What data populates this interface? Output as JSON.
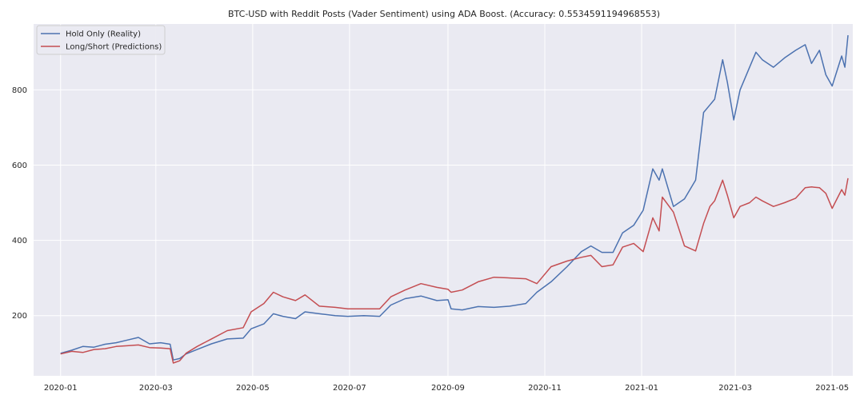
{
  "chart_data": {
    "type": "line",
    "title": "BTC-USD with Reddit Posts (Vader Sentiment) using ADA Boost. (Accuracy: 0.5534591194968553)",
    "xlabel": "",
    "ylabel": "",
    "x_ticks": [
      "2020-01",
      "2020-03",
      "2020-05",
      "2020-07",
      "2020-09",
      "2020-11",
      "2021-01",
      "2021-03",
      "2021-05"
    ],
    "y_ticks": [
      200,
      400,
      600,
      800
    ],
    "xlim": [
      "2019-12-15",
      "2021-05-14"
    ],
    "ylim": [
      40,
      975
    ],
    "grid": true,
    "legend_position": "top-left",
    "series": [
      {
        "name": "Hold Only (Reality)",
        "color": "#4c72b0",
        "points": [
          [
            "2020-01-01",
            100
          ],
          [
            "2020-01-08",
            108
          ],
          [
            "2020-01-15",
            118
          ],
          [
            "2020-01-22",
            116
          ],
          [
            "2020-01-29",
            124
          ],
          [
            "2020-02-05",
            128
          ],
          [
            "2020-02-12",
            135
          ],
          [
            "2020-02-19",
            142
          ],
          [
            "2020-02-26",
            125
          ],
          [
            "2020-03-04",
            128
          ],
          [
            "2020-03-10",
            124
          ],
          [
            "2020-03-12",
            82
          ],
          [
            "2020-03-16",
            86
          ],
          [
            "2020-03-20",
            98
          ],
          [
            "2020-03-27",
            110
          ],
          [
            "2020-04-05",
            125
          ],
          [
            "2020-04-15",
            138
          ],
          [
            "2020-04-25",
            140
          ],
          [
            "2020-04-30",
            165
          ],
          [
            "2020-05-08",
            178
          ],
          [
            "2020-05-14",
            205
          ],
          [
            "2020-05-20",
            198
          ],
          [
            "2020-05-28",
            192
          ],
          [
            "2020-06-03",
            210
          ],
          [
            "2020-06-12",
            205
          ],
          [
            "2020-06-22",
            200
          ],
          [
            "2020-06-30",
            198
          ],
          [
            "2020-07-10",
            200
          ],
          [
            "2020-07-20",
            198
          ],
          [
            "2020-07-27",
            228
          ],
          [
            "2020-08-05",
            245
          ],
          [
            "2020-08-15",
            252
          ],
          [
            "2020-08-25",
            240
          ],
          [
            "2020-09-01",
            242
          ],
          [
            "2020-09-03",
            218
          ],
          [
            "2020-09-10",
            215
          ],
          [
            "2020-09-20",
            224
          ],
          [
            "2020-09-30",
            222
          ],
          [
            "2020-10-10",
            225
          ],
          [
            "2020-10-20",
            232
          ],
          [
            "2020-10-27",
            262
          ],
          [
            "2020-11-05",
            290
          ],
          [
            "2020-11-15",
            330
          ],
          [
            "2020-11-24",
            370
          ],
          [
            "2020-11-30",
            385
          ],
          [
            "2020-12-07",
            368
          ],
          [
            "2020-12-14",
            368
          ],
          [
            "2020-12-20",
            420
          ],
          [
            "2020-12-27",
            440
          ],
          [
            "2021-01-02",
            480
          ],
          [
            "2021-01-08",
            590
          ],
          [
            "2021-01-12",
            560
          ],
          [
            "2021-01-14",
            590
          ],
          [
            "2021-01-21",
            490
          ],
          [
            "2021-01-28",
            510
          ],
          [
            "2021-02-04",
            560
          ],
          [
            "2021-02-09",
            740
          ],
          [
            "2021-02-13",
            760
          ],
          [
            "2021-02-16",
            775
          ],
          [
            "2021-02-21",
            880
          ],
          [
            "2021-02-24",
            820
          ],
          [
            "2021-02-28",
            720
          ],
          [
            "2021-03-04",
            800
          ],
          [
            "2021-03-10",
            860
          ],
          [
            "2021-03-14",
            900
          ],
          [
            "2021-03-18",
            880
          ],
          [
            "2021-03-25",
            860
          ],
          [
            "2021-04-01",
            885
          ],
          [
            "2021-04-08",
            905
          ],
          [
            "2021-04-14",
            920
          ],
          [
            "2021-04-18",
            870
          ],
          [
            "2021-04-23",
            905
          ],
          [
            "2021-04-27",
            840
          ],
          [
            "2021-05-01",
            810
          ],
          [
            "2021-05-07",
            890
          ],
          [
            "2021-05-09",
            860
          ],
          [
            "2021-05-11",
            945
          ]
        ]
      },
      {
        "name": "Long/Short (Predictions)",
        "color": "#c44e52",
        "points": [
          [
            "2020-01-01",
            98
          ],
          [
            "2020-01-08",
            105
          ],
          [
            "2020-01-15",
            102
          ],
          [
            "2020-01-22",
            110
          ],
          [
            "2020-01-29",
            112
          ],
          [
            "2020-02-05",
            118
          ],
          [
            "2020-02-12",
            120
          ],
          [
            "2020-02-19",
            122
          ],
          [
            "2020-02-26",
            115
          ],
          [
            "2020-03-04",
            114
          ],
          [
            "2020-03-10",
            112
          ],
          [
            "2020-03-12",
            74
          ],
          [
            "2020-03-16",
            80
          ],
          [
            "2020-03-20",
            100
          ],
          [
            "2020-03-27",
            118
          ],
          [
            "2020-04-05",
            138
          ],
          [
            "2020-04-15",
            160
          ],
          [
            "2020-04-25",
            168
          ],
          [
            "2020-04-30",
            210
          ],
          [
            "2020-05-08",
            232
          ],
          [
            "2020-05-14",
            262
          ],
          [
            "2020-05-20",
            250
          ],
          [
            "2020-05-28",
            240
          ],
          [
            "2020-06-03",
            255
          ],
          [
            "2020-06-12",
            225
          ],
          [
            "2020-06-22",
            222
          ],
          [
            "2020-06-30",
            218
          ],
          [
            "2020-07-10",
            218
          ],
          [
            "2020-07-20",
            218
          ],
          [
            "2020-07-27",
            250
          ],
          [
            "2020-08-05",
            268
          ],
          [
            "2020-08-15",
            285
          ],
          [
            "2020-08-25",
            275
          ],
          [
            "2020-09-01",
            270
          ],
          [
            "2020-09-03",
            262
          ],
          [
            "2020-09-10",
            268
          ],
          [
            "2020-09-20",
            290
          ],
          [
            "2020-09-30",
            302
          ],
          [
            "2020-10-10",
            300
          ],
          [
            "2020-10-20",
            298
          ],
          [
            "2020-10-27",
            285
          ],
          [
            "2020-11-05",
            330
          ],
          [
            "2020-11-15",
            345
          ],
          [
            "2020-11-24",
            355
          ],
          [
            "2020-11-30",
            360
          ],
          [
            "2020-12-07",
            330
          ],
          [
            "2020-12-14",
            335
          ],
          [
            "2020-12-20",
            382
          ],
          [
            "2020-12-27",
            392
          ],
          [
            "2021-01-02",
            370
          ],
          [
            "2021-01-08",
            460
          ],
          [
            "2021-01-12",
            425
          ],
          [
            "2021-01-14",
            515
          ],
          [
            "2021-01-21",
            475
          ],
          [
            "2021-01-28",
            385
          ],
          [
            "2021-02-04",
            372
          ],
          [
            "2021-02-09",
            445
          ],
          [
            "2021-02-13",
            490
          ],
          [
            "2021-02-16",
            505
          ],
          [
            "2021-02-21",
            560
          ],
          [
            "2021-02-24",
            520
          ],
          [
            "2021-02-28",
            460
          ],
          [
            "2021-03-04",
            490
          ],
          [
            "2021-03-10",
            500
          ],
          [
            "2021-03-14",
            515
          ],
          [
            "2021-03-18",
            505
          ],
          [
            "2021-03-25",
            490
          ],
          [
            "2021-04-01",
            500
          ],
          [
            "2021-04-08",
            512
          ],
          [
            "2021-04-14",
            540
          ],
          [
            "2021-04-18",
            542
          ],
          [
            "2021-04-23",
            540
          ],
          [
            "2021-04-27",
            525
          ],
          [
            "2021-05-01",
            485
          ],
          [
            "2021-05-07",
            535
          ],
          [
            "2021-05-09",
            520
          ],
          [
            "2021-05-11",
            565
          ]
        ]
      }
    ]
  }
}
